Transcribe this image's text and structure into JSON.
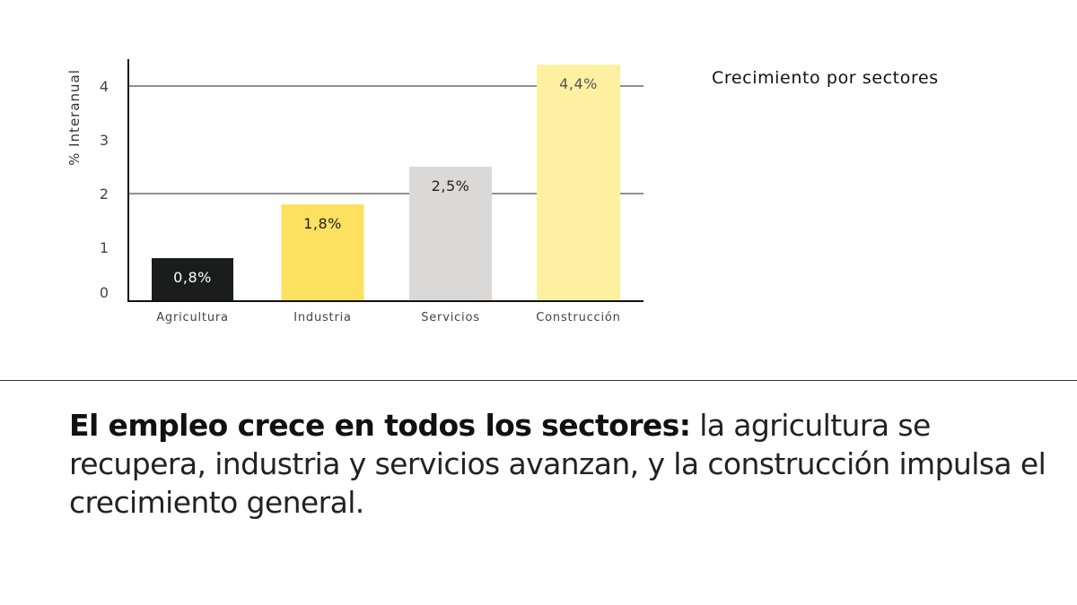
{
  "chart_data": {
    "type": "bar",
    "title": "Crecimiento por sectores",
    "ylabel": "% Interanual",
    "xlabel": "",
    "categories": [
      "Agricultura",
      "Industria",
      "Servicios",
      "Construcción"
    ],
    "values": [
      0.8,
      1.8,
      2.5,
      4.4
    ],
    "data_labels": [
      "0,8%",
      "1,8%",
      "2,5%",
      "4,4%"
    ],
    "ylim": [
      0,
      4.5
    ],
    "yticks": [
      0,
      1,
      2,
      3,
      4
    ],
    "gridlines": [
      2,
      4
    ],
    "colors": [
      "#1b1c1c",
      "#fbe15f",
      "#dad9d8",
      "#fdf0a1"
    ],
    "label_colors": [
      "#ffffff",
      "#222222",
      "#222222",
      "#555555"
    ]
  },
  "caption": {
    "lead": "El empleo crece en todos los sectores:",
    "body": " la agricultura se recupera, industria y servicios avanzan, y la construcción impulsa el crecimiento general."
  }
}
